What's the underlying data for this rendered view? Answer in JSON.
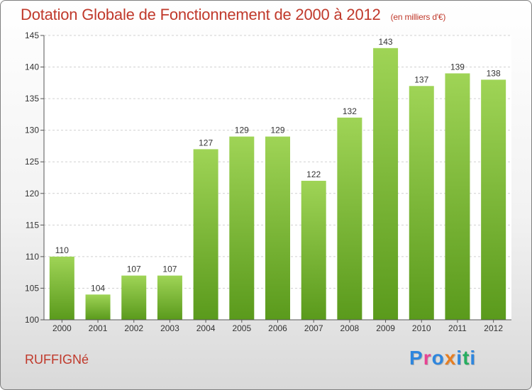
{
  "chart_data": {
    "type": "bar",
    "title": "Dotation Globale de Fonctionnement de 2000 à 2012",
    "subtitle": "(en milliers d'€)",
    "categories": [
      "2000",
      "2001",
      "2002",
      "2003",
      "2004",
      "2005",
      "2006",
      "2007",
      "2008",
      "2009",
      "2010",
      "2011",
      "2012"
    ],
    "values": [
      110,
      104,
      107,
      107,
      127,
      129,
      129,
      122,
      132,
      143,
      137,
      139,
      138
    ],
    "ylim": [
      100,
      145
    ],
    "yticks": [
      100,
      105,
      110,
      115,
      120,
      125,
      130,
      135,
      140,
      145
    ],
    "grid": true,
    "bar_color": "#7cc03a",
    "bar_color_dark": "#5a9a1c"
  },
  "footer": {
    "place_name": "RUFFIGNé",
    "brand": [
      "P",
      "r",
      "o",
      "x",
      "i",
      "t",
      "i"
    ],
    "brand_colors": [
      "#2e86de",
      "#e84393",
      "#2e86de",
      "#e67e22",
      "#2e86de",
      "#27ae60",
      "#2e86de"
    ]
  },
  "colors": {
    "accent": "#c0392b"
  }
}
